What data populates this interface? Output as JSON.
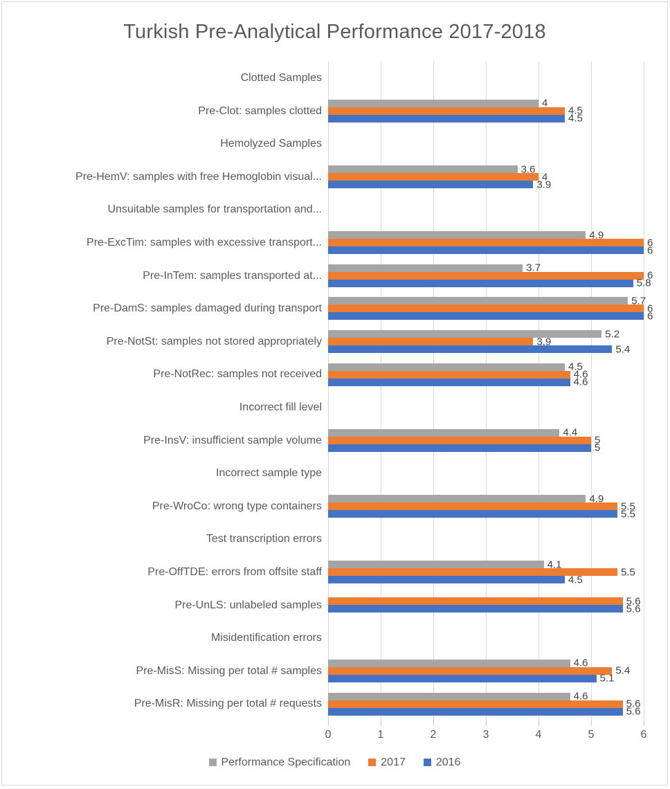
{
  "chart_data": {
    "type": "bar",
    "orientation": "horizontal",
    "title": "Turkish Pre-Analytical Performance 2017-2018",
    "xlabel": "",
    "ylabel": "",
    "xlim": [
      0,
      6
    ],
    "x_ticks": [
      "0",
      "1",
      "2",
      "3",
      "4",
      "5",
      "6"
    ],
    "grid": true,
    "legend_position": "bottom",
    "series": [
      {
        "name": "Performance Specification",
        "color": "#A5A5A5"
      },
      {
        "name": "2017",
        "color": "#ED7D31"
      },
      {
        "name": "2016",
        "color": "#4472C4"
      }
    ],
    "categories": [
      {
        "label": "Clotted Samples",
        "values": [
          null,
          null,
          null
        ]
      },
      {
        "label": "Pre-Clot: samples clotted",
        "values": [
          4,
          4.5,
          4.5
        ]
      },
      {
        "label": "Hemolyzed Samples",
        "values": [
          null,
          null,
          null
        ]
      },
      {
        "label": "Pre-HemV: samples with free Hemoglobin visual...",
        "values": [
          3.6,
          4,
          3.9
        ]
      },
      {
        "label": "Unsuitable samples for transportation and...",
        "values": [
          null,
          null,
          null
        ]
      },
      {
        "label": "Pre-ExcTim: samples with excessive transport...",
        "values": [
          4.9,
          6,
          6
        ]
      },
      {
        "label": "Pre-InTem: samples transported at...",
        "values": [
          3.7,
          6,
          5.8
        ]
      },
      {
        "label": "Pre-DamS: samples damaged during transport",
        "values": [
          5.7,
          6,
          6
        ]
      },
      {
        "label": "Pre-NotSt: samples not stored appropriately",
        "values": [
          5.2,
          3.9,
          5.4
        ]
      },
      {
        "label": "Pre-NotRec: samples not received",
        "values": [
          4.5,
          4.6,
          4.6
        ]
      },
      {
        "label": "Incorrect fill level",
        "values": [
          null,
          null,
          null
        ]
      },
      {
        "label": "Pre-InsV: insufficient sample volume",
        "values": [
          4.4,
          5,
          5
        ]
      },
      {
        "label": "Incorrect sample type",
        "values": [
          null,
          null,
          null
        ]
      },
      {
        "label": "Pre-WroCo: wrong type containers",
        "values": [
          4.9,
          5.5,
          5.5
        ]
      },
      {
        "label": "Test transcription errors",
        "values": [
          null,
          null,
          null
        ]
      },
      {
        "label": "Pre-OffTDE: errors from offsite staff",
        "values": [
          4.1,
          5.5,
          4.5
        ]
      },
      {
        "label": "Pre-UnLS: unlabeled samples",
        "values": [
          null,
          5.6,
          5.6
        ]
      },
      {
        "label": "Misidentification errors",
        "values": [
          null,
          null,
          null
        ]
      },
      {
        "label": "Pre-MisS: Missing per total # samples",
        "values": [
          4.6,
          5.4,
          5.1
        ]
      },
      {
        "label": "Pre-MisR: Missing per total # requests",
        "values": [
          4.6,
          5.6,
          5.6
        ]
      }
    ],
    "colors": {
      "title_text": "#595959",
      "category_text": "#595959",
      "axis_text": "#595959",
      "data_label_text": "#404040",
      "gridline": "#D9D9D9",
      "tick": "#BFBFBF",
      "frame_border": "#D9D9D9",
      "background": "#FFFFFF"
    }
  }
}
